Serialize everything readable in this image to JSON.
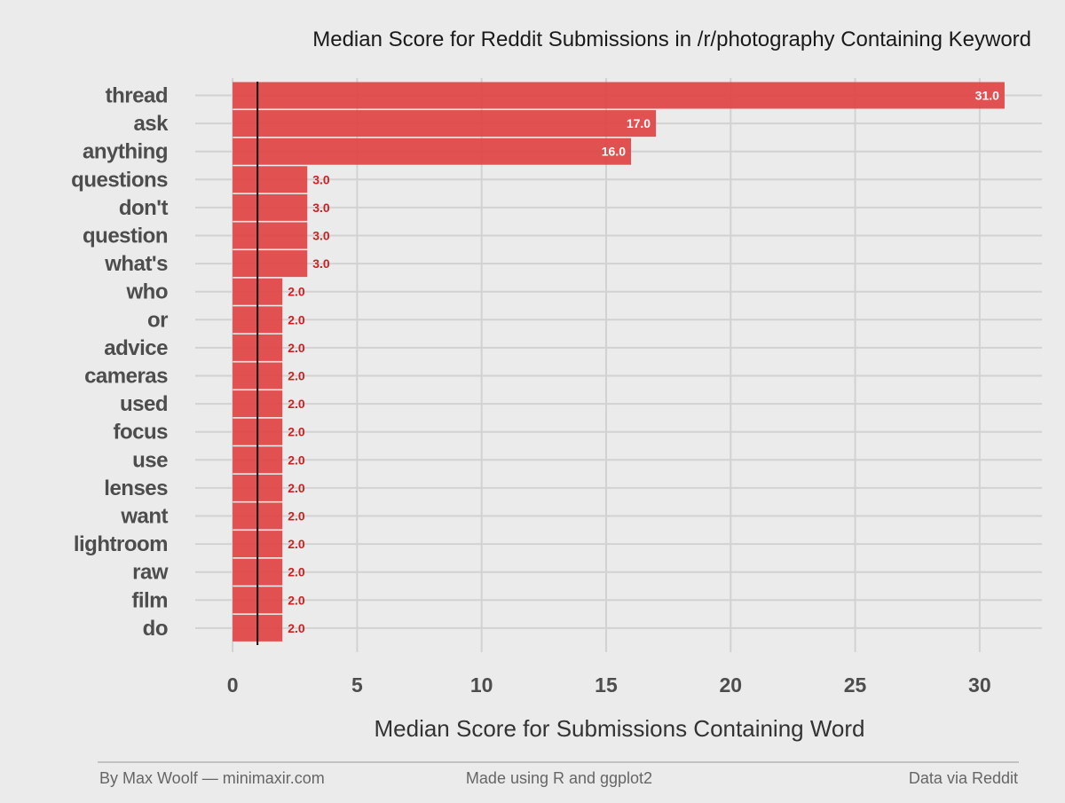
{
  "chart_data": {
    "type": "bar",
    "orientation": "horizontal",
    "title": "Median Score for Reddit Submissions in /r/photography Containing Keyword",
    "xlabel": "Median Score for Submissions Containing Word",
    "categories": [
      "thread",
      "ask",
      "anything",
      "questions",
      "don't",
      "question",
      "what's",
      "who",
      "or",
      "advice",
      "cameras",
      "used",
      "focus",
      "use",
      "lenses",
      "want",
      "lightroom",
      "raw",
      "film",
      "do"
    ],
    "values": [
      31.0,
      17.0,
      16.0,
      3.0,
      3.0,
      3.0,
      3.0,
      2.0,
      2.0,
      2.0,
      2.0,
      2.0,
      2.0,
      2.0,
      2.0,
      2.0,
      2.0,
      2.0,
      2.0,
      2.0
    ],
    "value_labels": [
      "31.0",
      "17.0",
      "16.0",
      "3.0",
      "3.0",
      "3.0",
      "3.0",
      "2.0",
      "2.0",
      "2.0",
      "2.0",
      "2.0",
      "2.0",
      "2.0",
      "2.0",
      "2.0",
      "2.0",
      "2.0",
      "2.0",
      "2.0"
    ],
    "xticks": [
      0,
      5,
      10,
      15,
      20,
      25,
      30
    ],
    "xtick_labels": [
      "0",
      "5",
      "10",
      "15",
      "20",
      "25",
      "30"
    ],
    "xlim": [
      -1.5,
      32.5
    ],
    "reference_line": 1,
    "bar_color": "#e04040",
    "grid": true
  },
  "footer": {
    "left": "By Max Woolf — minimaxir.com",
    "center": "Made using R and ggplot2",
    "right": "Data via Reddit"
  }
}
